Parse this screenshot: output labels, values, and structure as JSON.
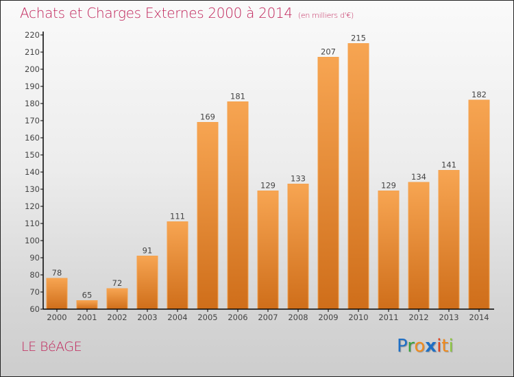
{
  "header": {
    "title": "Achats et Charges Externes 2000 à 2014",
    "subtitle": "(en milliers d'€)"
  },
  "footer": {
    "commune": "LE BéAGE",
    "logo": {
      "letters": [
        "P",
        "r",
        "o",
        "x",
        "i",
        "t",
        "i"
      ],
      "colors": [
        "#1f6fc4",
        "#3aa03a",
        "#f08a1c",
        "#1f6fc4",
        "#e0421e",
        "#f08a1c",
        "#8cc63f"
      ]
    }
  },
  "colors": {
    "title": "#c0245a",
    "bar_top": "#f7a552",
    "bar_bottom": "#cf6e1a",
    "axis": "#000000"
  },
  "chart_data": {
    "type": "bar",
    "title": "Achats et Charges Externes 2000 à 2014 (en milliers d'€)",
    "xlabel": "",
    "ylabel": "",
    "categories": [
      "2000",
      "2001",
      "2002",
      "2003",
      "2004",
      "2005",
      "2006",
      "2007",
      "2008",
      "2009",
      "2010",
      "2011",
      "2012",
      "2013",
      "2014"
    ],
    "values": [
      78,
      65,
      72,
      91,
      111,
      169,
      181,
      129,
      133,
      207,
      215,
      129,
      134,
      141,
      182
    ],
    "ylim": [
      60,
      220
    ],
    "yticks": [
      60,
      70,
      80,
      90,
      100,
      110,
      120,
      130,
      140,
      150,
      160,
      170,
      180,
      190,
      200,
      210,
      220
    ],
    "grid": false,
    "legend": "none",
    "data_labels": true
  }
}
